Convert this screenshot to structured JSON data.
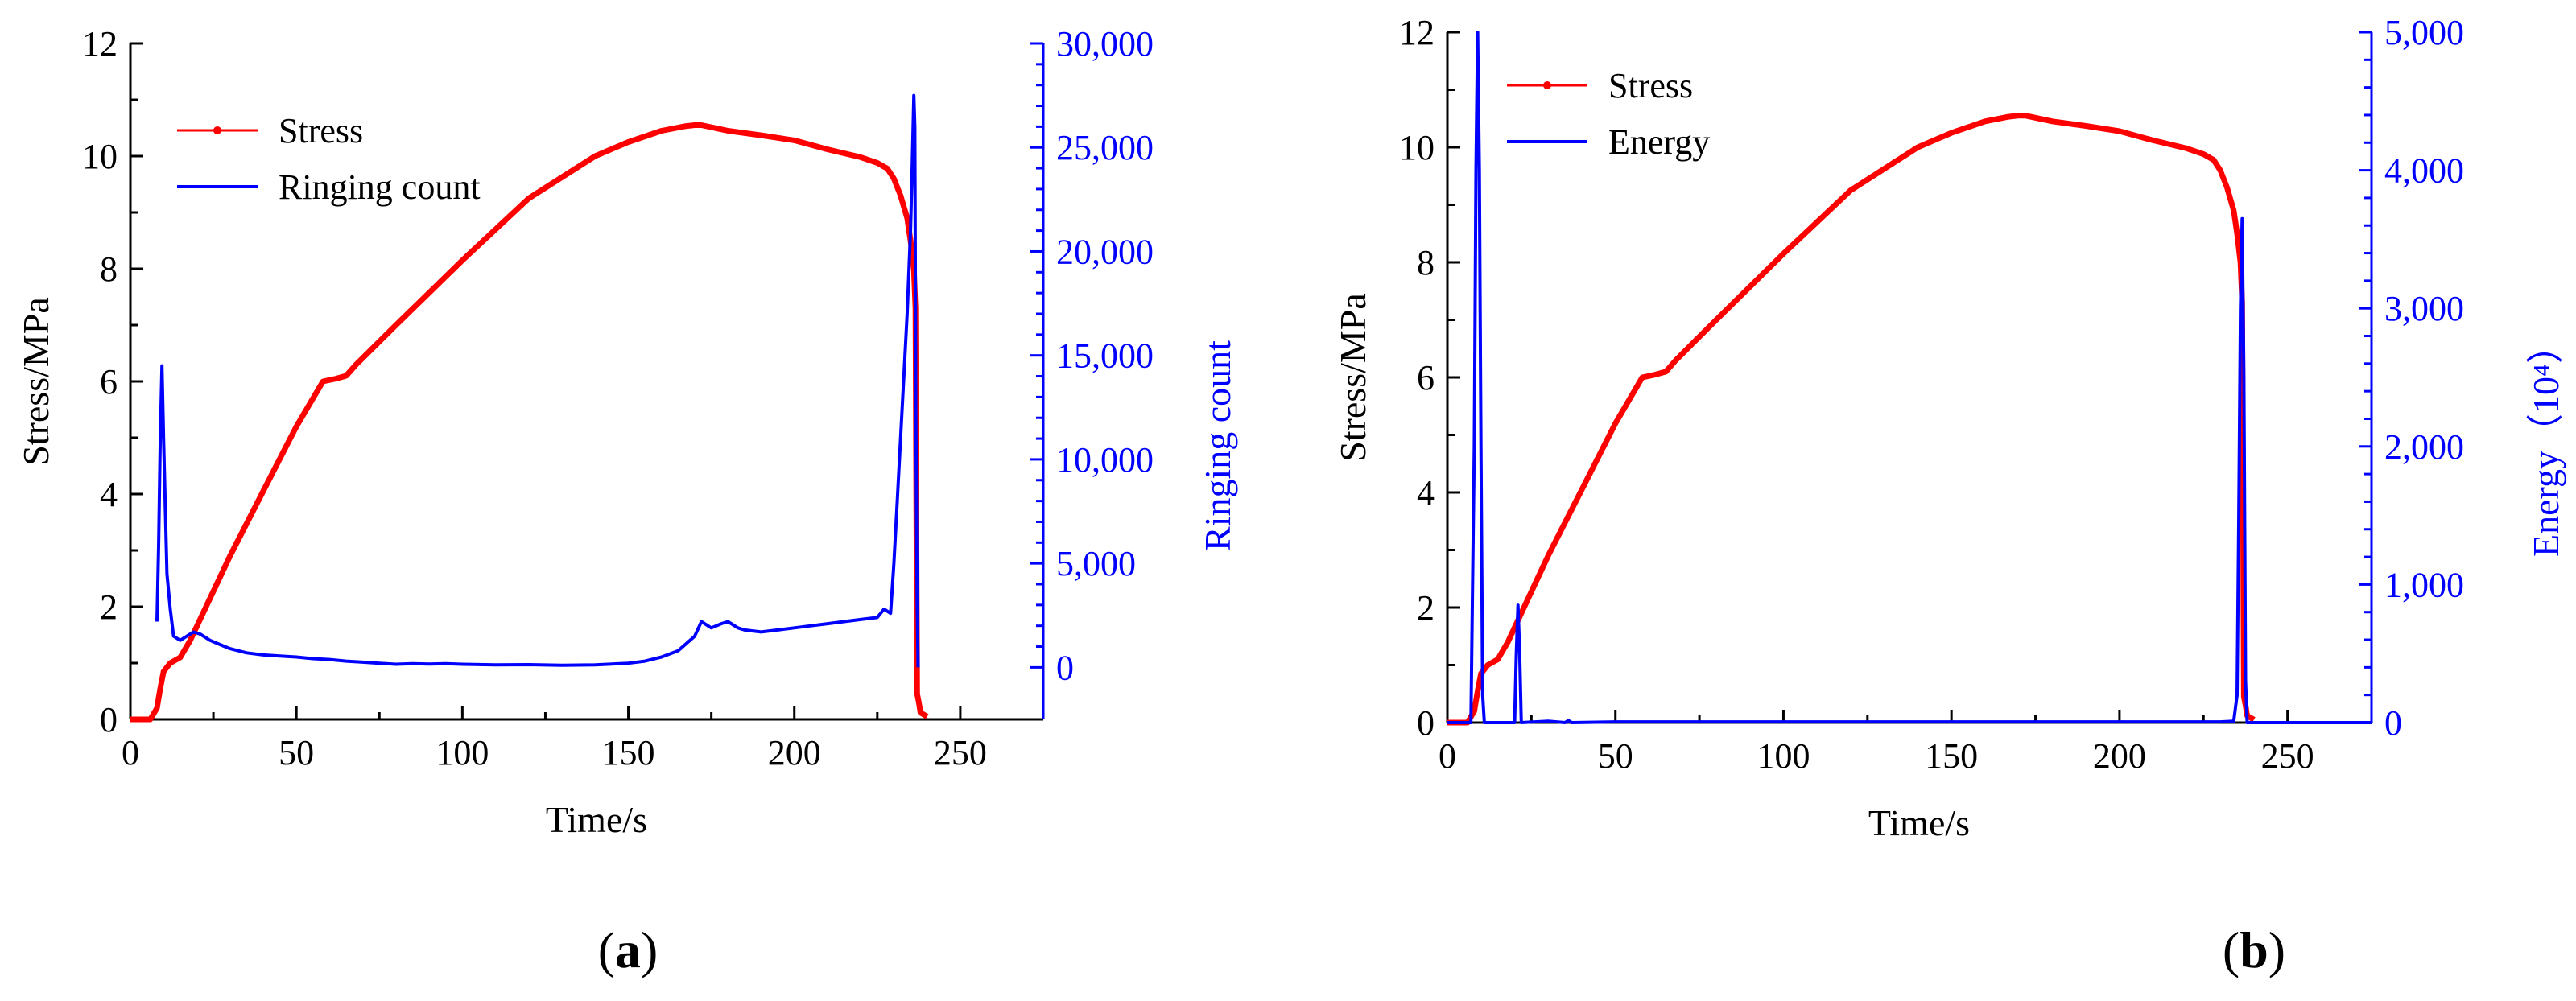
{
  "colors": {
    "stress": "#ff0000",
    "acoustic": "#0000ff",
    "axis": "#000000"
  },
  "chart_data": [
    {
      "type": "line",
      "panel_label": "a",
      "xlabel": "Time/s",
      "ylabel": "Stress/MPa",
      "y2label": "Ringing count",
      "xlim": [
        0,
        275
      ],
      "ylim": [
        0,
        12
      ],
      "y2lim": [
        -2500,
        30000
      ],
      "xticks": [
        0,
        50,
        100,
        150,
        200,
        250
      ],
      "xtick_labels": [
        "0",
        "50",
        "100",
        "150",
        "200",
        "250"
      ],
      "yticks": [
        0,
        2,
        4,
        6,
        8,
        10,
        12
      ],
      "ytick_labels": [
        "0",
        "2",
        "4",
        "6",
        "8",
        "10",
        "12"
      ],
      "y2ticks": [
        0,
        5000,
        10000,
        15000,
        20000,
        25000,
        30000
      ],
      "y2tick_labels": [
        "0",
        "5,000",
        "10,000",
        "15,000",
        "20,000",
        "25,000",
        "30,000"
      ],
      "legend": {
        "position": "top-left",
        "entries": [
          "Stress",
          "Ringing count"
        ]
      },
      "series": [
        {
          "name": "Stress",
          "axis": "left",
          "x": [
            0,
            6,
            8,
            9,
            10,
            12,
            15,
            18,
            22,
            30,
            40,
            50,
            58,
            62,
            65,
            68,
            80,
            100,
            120,
            140,
            150,
            160,
            167,
            170,
            172,
            180,
            190,
            200,
            210,
            220,
            225,
            228,
            230,
            232,
            234,
            235,
            236,
            236.5,
            237,
            237.5,
            238,
            240
          ],
          "y": [
            0,
            0,
            0.2,
            0.55,
            0.85,
            1.0,
            1.1,
            1.4,
            1.9,
            2.9,
            4.05,
            5.2,
            6.0,
            6.05,
            6.1,
            6.3,
            7.0,
            8.15,
            9.25,
            10.0,
            10.25,
            10.45,
            10.53,
            10.55,
            10.55,
            10.45,
            10.37,
            10.28,
            10.12,
            9.98,
            9.88,
            9.78,
            9.6,
            9.3,
            8.9,
            8.5,
            8.0,
            7.3,
            0.45,
            0.3,
            0.12,
            0.05
          ]
        },
        {
          "name": "Ringing count",
          "axis": "right",
          "x": [
            8,
            8.5,
            9,
            9.5,
            10,
            11,
            12,
            13,
            14,
            15,
            17,
            19,
            21,
            24,
            27,
            30,
            35,
            40,
            45,
            50,
            55,
            60,
            65,
            70,
            75,
            80,
            85,
            90,
            95,
            100,
            110,
            120,
            130,
            140,
            150,
            155,
            160,
            165,
            170,
            172,
            175,
            178,
            180,
            183,
            185,
            190,
            195,
            200,
            205,
            210,
            215,
            220,
            225,
            227,
            229,
            230,
            231,
            232,
            233,
            234,
            235,
            235.5,
            236,
            236.3,
            236.6,
            237,
            237.3
          ],
          "y": [
            2200,
            6000,
            11000,
            14500,
            11000,
            4500,
            2800,
            1500,
            1400,
            1300,
            1500,
            1700,
            1600,
            1300,
            1100,
            900,
            700,
            600,
            550,
            500,
            420,
            380,
            300,
            250,
            200,
            150,
            180,
            160,
            180,
            150,
            120,
            130,
            100,
            120,
            200,
            300,
            500,
            800,
            1500,
            2200,
            1900,
            2100,
            2200,
            1900,
            1800,
            1700,
            1800,
            1900,
            2000,
            2100,
            2200,
            2300,
            2400,
            2800,
            2600,
            5000,
            8000,
            11000,
            14000,
            17000,
            21000,
            24000,
            27500,
            26000,
            12000,
            3000,
            0
          ]
        }
      ]
    },
    {
      "type": "line",
      "panel_label": "b",
      "xlabel": "Time/s",
      "ylabel": "Stress/MPa",
      "y2label": "Energy（10⁴）",
      "xlim": [
        0,
        275
      ],
      "ylim": [
        0,
        12
      ],
      "y2lim": [
        0,
        5000
      ],
      "xticks": [
        0,
        50,
        100,
        150,
        200,
        250
      ],
      "xtick_labels": [
        "0",
        "50",
        "100",
        "150",
        "200",
        "250"
      ],
      "yticks": [
        0,
        2,
        4,
        6,
        8,
        10,
        12
      ],
      "ytick_labels": [
        "0",
        "2",
        "4",
        "6",
        "8",
        "10",
        "12"
      ],
      "y2ticks": [
        0,
        1000,
        2000,
        3000,
        4000,
        5000
      ],
      "y2tick_labels": [
        "0",
        "1,000",
        "2,000",
        "3,000",
        "4,000",
        "5,000"
      ],
      "legend": {
        "position": "top-left",
        "entries": [
          "Stress",
          "Energy"
        ]
      },
      "series": [
        {
          "name": "Stress",
          "axis": "left",
          "x": [
            0,
            6,
            8,
            9,
            10,
            12,
            15,
            18,
            22,
            30,
            40,
            50,
            58,
            62,
            65,
            68,
            80,
            100,
            120,
            140,
            150,
            160,
            167,
            170,
            172,
            180,
            190,
            200,
            210,
            220,
            225,
            228,
            230,
            232,
            234,
            235,
            236,
            236.5,
            237,
            237.5,
            238,
            240
          ],
          "y": [
            0,
            0,
            0.2,
            0.55,
            0.85,
            1.0,
            1.1,
            1.4,
            1.9,
            2.9,
            4.05,
            5.2,
            6.0,
            6.05,
            6.1,
            6.3,
            7.0,
            8.15,
            9.25,
            10.0,
            10.25,
            10.45,
            10.53,
            10.55,
            10.55,
            10.45,
            10.37,
            10.28,
            10.12,
            9.98,
            9.88,
            9.78,
            9.6,
            9.3,
            8.9,
            8.5,
            8.0,
            7.3,
            0.45,
            0.3,
            0.12,
            0.05
          ]
        },
        {
          "name": "Energy",
          "axis": "right",
          "x": [
            0,
            7,
            8,
            8.5,
            9,
            9.5,
            10,
            10.5,
            11,
            15,
            20,
            20.5,
            21,
            21.5,
            22,
            30,
            35,
            36,
            37,
            50,
            100,
            150,
            200,
            230,
            234,
            235,
            235.5,
            236,
            236.5,
            237,
            237.5,
            238,
            240,
            275
          ],
          "y": [
            0,
            0,
            2000,
            4000,
            5000,
            4000,
            2000,
            200,
            0,
            0,
            0,
            500,
            850,
            500,
            0,
            10,
            0,
            15,
            0,
            5,
            5,
            5,
            5,
            5,
            10,
            200,
            1500,
            3000,
            3650,
            2500,
            300,
            0,
            0,
            0
          ]
        }
      ]
    }
  ]
}
